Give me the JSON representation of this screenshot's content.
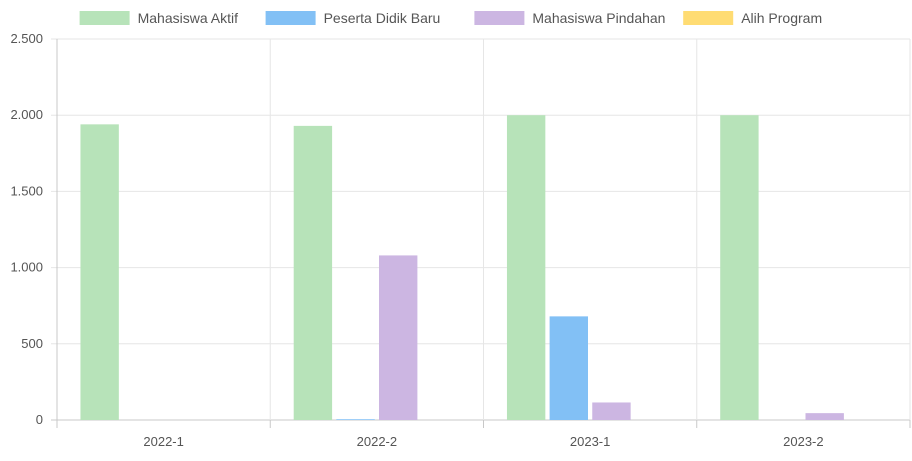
{
  "chart_data": {
    "type": "bar",
    "categories": [
      "2022-1",
      "2022-2",
      "2023-1",
      "2023-2"
    ],
    "series": [
      {
        "name": "Mahasiswa Aktif",
        "values": [
          1940,
          1930,
          2000,
          2000
        ],
        "color": "#b7e3b9"
      },
      {
        "name": "Peserta Didik Baru",
        "values": [
          0,
          5,
          680,
          0
        ],
        "color": "#82c0f5"
      },
      {
        "name": "Mahasiswa Pindahan",
        "values": [
          0,
          1080,
          115,
          45
        ],
        "color": "#ccb6e2"
      },
      {
        "name": "Alih Program",
        "values": [
          0,
          0,
          0,
          0
        ],
        "color": "#ffdc73"
      }
    ],
    "ylim": [
      0,
      2500
    ],
    "yticks": [
      0,
      500,
      1000,
      1500,
      2000,
      2500
    ],
    "ytick_labels": [
      "0",
      "500",
      "1.000",
      "1.500",
      "2.000",
      "2.500"
    ],
    "grid": true,
    "legend_position": "top"
  }
}
